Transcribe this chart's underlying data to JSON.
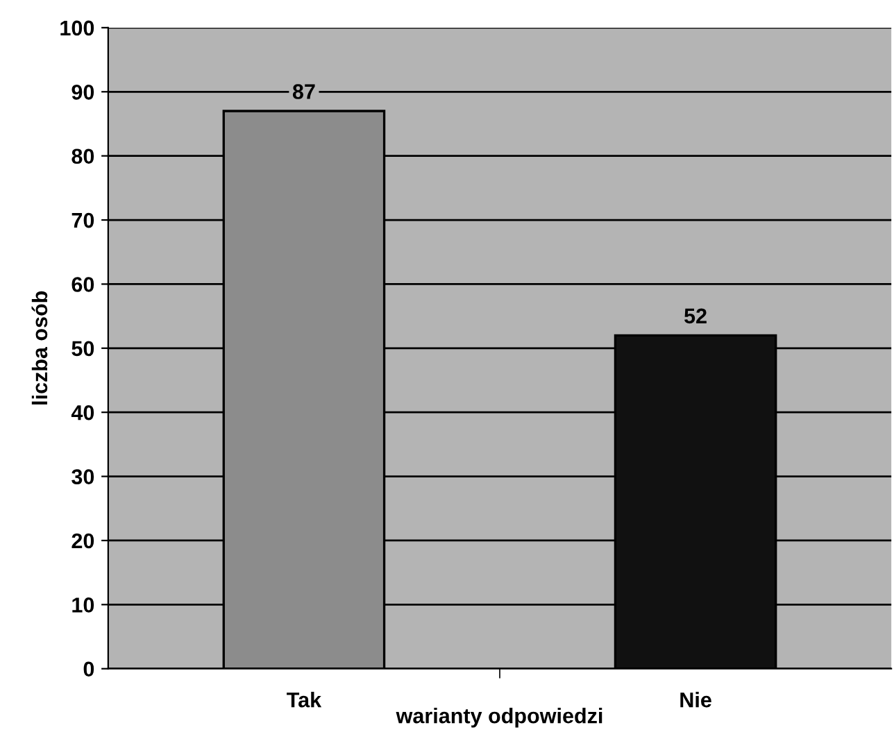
{
  "chart_data": {
    "type": "bar",
    "xlabel": "warianty odpowiedzi",
    "ylabel": "liczba osób",
    "categories": [
      "Tak",
      "Nie"
    ],
    "values": [
      87,
      52
    ],
    "colors": [
      "#8c8c8c",
      "#111111"
    ],
    "ylim": [
      0,
      100
    ],
    "yticks": [
      0,
      10,
      20,
      30,
      40,
      50,
      60,
      70,
      80,
      90,
      100
    ],
    "grid": "y",
    "data_labels": true,
    "legend": false
  }
}
